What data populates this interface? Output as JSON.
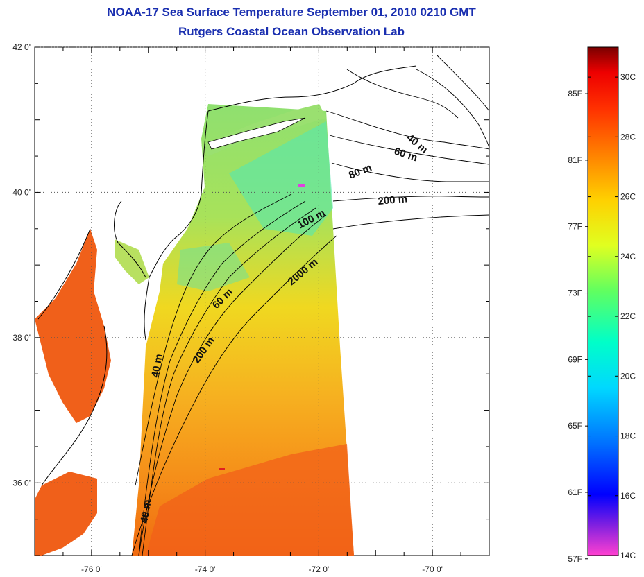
{
  "title": {
    "line1": "NOAA-17 Sea Surface Temperature September 01, 2010 0210 GMT",
    "line2": "Rutgers Coastal Ocean Observation Lab"
  },
  "map": {
    "lon_range": [
      -77,
      -69
    ],
    "lat_range": [
      35,
      42
    ],
    "x_ticks": [
      {
        "lon": -76,
        "label": "-76 0'"
      },
      {
        "lon": -74,
        "label": "-74 0'"
      },
      {
        "lon": -72,
        "label": "-72 0'"
      },
      {
        "lon": -70,
        "label": "-70 0'"
      }
    ],
    "y_ticks": [
      {
        "lat": 42,
        "label": "42 0'"
      },
      {
        "lat": 40,
        "label": "40 0'"
      },
      {
        "lat": 38,
        "label": "38 0'"
      },
      {
        "lat": 36,
        "label": "36 0'"
      }
    ],
    "grid": "dotted",
    "contour_labels": [
      "40 m",
      "60 m",
      "80 m",
      "200 m",
      "100 m",
      "2000 m",
      "60 m",
      "200 m",
      "40 m",
      "40 m"
    ]
  },
  "colorbar": {
    "range_c": [
      14,
      31
    ],
    "fahrenheit_labels": [
      "85F",
      "81F",
      "77F",
      "73F",
      "69F",
      "65F",
      "61F",
      "57F"
    ],
    "celsius_labels": [
      "30C",
      "28C",
      "26C",
      "24C",
      "22C",
      "20C",
      "18C",
      "16C",
      "14C"
    ],
    "colors": [
      "#ff40d0",
      "#8020e0",
      "#0000ff",
      "#0070ff",
      "#00d8ff",
      "#00ffc8",
      "#60ff60",
      "#e0ff20",
      "#ffd000",
      "#ff8000",
      "#ff3000",
      "#ee0000",
      "#7a0000"
    ]
  }
}
